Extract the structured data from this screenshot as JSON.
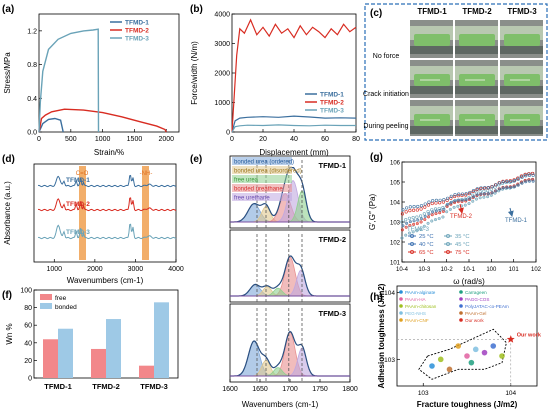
{
  "panel_labels": [
    "(a)",
    "(b)",
    "(c)",
    "(d)",
    "(e)",
    "(f)",
    "(g)",
    "(h)"
  ],
  "series_names": [
    "TFMD-1",
    "TFMD-2",
    "TFMD-3"
  ],
  "colors": {
    "tfmd1": "#3b6f9e",
    "tfmd2": "#d82c22",
    "tfmd3": "#6aa3b8",
    "free": "#f2878a",
    "bonded": "#9ec9e6",
    "orange": "#f0a050"
  },
  "chart_data": [
    {
      "panel": "(a)",
      "type": "line",
      "xlabel": "Strain/%",
      "ylabel": "Stress/MPa",
      "xlim": [
        0,
        2200
      ],
      "ylim": [
        0,
        1.4
      ],
      "xticks": [
        0,
        500,
        1000,
        1500,
        2000
      ],
      "yticks": [
        0.0,
        0.4,
        0.8,
        1.2
      ],
      "legend": [
        "TFMD-1",
        "TFMD-2",
        "TFMD-3"
      ],
      "legend_placement": "top-right",
      "series": [
        {
          "name": "TFMD-1",
          "x": [
            0,
            60,
            150,
            250,
            340,
            380
          ],
          "y": [
            0,
            0.1,
            0.15,
            0.16,
            0.14,
            0
          ]
        },
        {
          "name": "TFMD-2",
          "x": [
            0,
            40,
            100,
            200,
            400,
            700,
            1000,
            1300,
            1600,
            1850,
            1980,
            2000
          ],
          "y": [
            0,
            0.16,
            0.2,
            0.24,
            0.27,
            0.26,
            0.23,
            0.18,
            0.12,
            0.07,
            0.03,
            0
          ]
        },
        {
          "name": "TFMD-3",
          "x": [
            0,
            20,
            60,
            150,
            300,
            500,
            700,
            850,
            930,
            935
          ],
          "y": [
            0,
            0.35,
            0.72,
            0.98,
            1.1,
            1.17,
            1.2,
            1.21,
            1.22,
            0
          ]
        }
      ]
    },
    {
      "panel": "(b)",
      "type": "line",
      "xlabel": "Displacement (mm)",
      "ylabel": "Force/width (N/m)",
      "xlim": [
        0,
        80
      ],
      "ylim": [
        0,
        4000
      ],
      "xticks": [
        0,
        20,
        40,
        60,
        80
      ],
      "yticks": [
        0,
        1000,
        2000,
        3000,
        4000
      ],
      "legend": [
        "TFMD-1",
        "TFMD-2",
        "TFMD-3"
      ],
      "legend_placement": "right",
      "series": [
        {
          "name": "TFMD-1",
          "x": [
            0,
            2,
            5,
            10,
            20,
            30,
            40,
            50,
            60,
            70,
            80
          ],
          "y": [
            0,
            380,
            470,
            500,
            520,
            500,
            540,
            510,
            470,
            480,
            470
          ]
        },
        {
          "name": "TFMD-2",
          "x": [
            0,
            3,
            5,
            8,
            12,
            16,
            20,
            24,
            28,
            32,
            36,
            40,
            44,
            48,
            52,
            56,
            60,
            64,
            68,
            72,
            76,
            80
          ],
          "y": [
            0,
            2600,
            3500,
            3350,
            3800,
            3300,
            3550,
            3250,
            3650,
            3350,
            3500,
            3200,
            3600,
            3300,
            3550,
            3400,
            3200,
            3500,
            3300,
            3650,
            3400,
            3550
          ]
        },
        {
          "name": "TFMD-3",
          "x": [
            0,
            2,
            5,
            10,
            20,
            30,
            40,
            50,
            60,
            70,
            80
          ],
          "y": [
            0,
            180,
            210,
            230,
            220,
            240,
            220,
            210,
            230,
            220,
            220
          ]
        }
      ]
    },
    {
      "panel": "(d)",
      "type": "line",
      "xlabel": "Wavenumbers (cm-1)",
      "ylabel": "Absorbance (a.u.)",
      "xlim": [
        500,
        4000
      ],
      "xticks": [
        1000,
        2000,
        3000,
        4000
      ],
      "annotations": [
        "C=O",
        "-NH-"
      ],
      "series": [
        {
          "name": "TFMD-1"
        },
        {
          "name": "TFMD-2"
        },
        {
          "name": "TFMD-3"
        }
      ]
    },
    {
      "panel": "(e)",
      "type": "area",
      "xlabel": "Wavenumbers (cm-1)",
      "xlim": [
        1600,
        1800
      ],
      "xticks": [
        1600,
        1650,
        1700,
        1750,
        1800
      ],
      "legend": [
        "bonded urea (ordered)",
        "bonded urea (disordered)",
        "free urea",
        "bonded ureathane",
        "free urethane"
      ],
      "legend_colors": [
        "#7fa8d8",
        "#e0c890",
        "#90d090",
        "#e89090",
        "#c0a8e0"
      ],
      "dashed_lines": [
        1645,
        1660,
        1698,
        1720
      ],
      "subplots": [
        {
          "name": "TFMD-1",
          "peaks": [
            {
              "c": 1640,
              "h": 0.35,
              "w": 14,
              "color": "#7fa8d8"
            },
            {
              "c": 1660,
              "h": 0.3,
              "w": 10,
              "color": "#e0c890"
            },
            {
              "c": 1692,
              "h": 0.55,
              "w": 13,
              "color": "#e89090"
            },
            {
              "c": 1705,
              "h": 0.8,
              "w": 12,
              "color": "#c0a8e0"
            },
            {
              "c": 1720,
              "h": 0.6,
              "w": 10,
              "color": "#90d090"
            }
          ]
        },
        {
          "name": "TFMD-2",
          "peaks": [
            {
              "c": 1642,
              "h": 0.22,
              "w": 12,
              "color": "#7fa8d8"
            },
            {
              "c": 1662,
              "h": 0.18,
              "w": 10,
              "color": "#e0c890"
            },
            {
              "c": 1700,
              "h": 0.75,
              "w": 12,
              "color": "#e89090"
            },
            {
              "c": 1718,
              "h": 0.5,
              "w": 10,
              "color": "#c0a8e0"
            },
            {
              "c": 1680,
              "h": 0.15,
              "w": 10,
              "color": "#90d090"
            }
          ]
        },
        {
          "name": "TFMD-3",
          "peaks": [
            {
              "c": 1640,
              "h": 0.62,
              "w": 13,
              "color": "#7fa8d8"
            },
            {
              "c": 1660,
              "h": 0.28,
              "w": 10,
              "color": "#e0c890"
            },
            {
              "c": 1700,
              "h": 0.78,
              "w": 12,
              "color": "#e89090"
            },
            {
              "c": 1720,
              "h": 0.5,
              "w": 10,
              "color": "#c0a8e0"
            },
            {
              "c": 1680,
              "h": 0.15,
              "w": 10,
              "color": "#90d090"
            }
          ]
        }
      ]
    },
    {
      "panel": "(f)",
      "type": "bar",
      "ylabel": "Wn %",
      "categories": [
        "TFMD-1",
        "TFMD-2",
        "TFMD-3"
      ],
      "ylim": [
        0,
        100
      ],
      "yticks": [
        0,
        20,
        40,
        60,
        80,
        100
      ],
      "legend": [
        "free",
        "bonded"
      ],
      "legend_placement": "top-left",
      "series": [
        {
          "name": "free",
          "values": [
            44,
            33,
            14
          ]
        },
        {
          "name": "bonded",
          "values": [
            56,
            67,
            86
          ]
        }
      ]
    },
    {
      "panel": "(g)",
      "type": "scatter",
      "xlabel": "ω (rad/s)",
      "ylabel": "G′,G″ (Pa)",
      "xscale": "log",
      "yscale": "log",
      "xlim": [
        0.0001,
        100
      ],
      "ylim": [
        10,
        1000000
      ],
      "xticks": [
        "10-4",
        "10-3",
        "10-2",
        "10-1",
        "100",
        "101",
        "102"
      ],
      "yticks": [
        "101",
        "102",
        "103",
        "104",
        "105",
        "106"
      ],
      "annotations": [
        "TFMD-3",
        "TFMD-2",
        "TFMD-1"
      ],
      "legend": [
        "25 °C",
        "40 °C",
        "65 °C",
        "35 °C",
        "45 °C",
        "75 °C"
      ]
    },
    {
      "panel": "(h)",
      "type": "scatter",
      "xlabel": "Fracture toughness (J/m2)",
      "ylabel": "Adhesion toughness (J/m2)",
      "xscale": "log",
      "yscale": "log",
      "xticks": [
        "103",
        "104"
      ],
      "yticks": [
        "103",
        "104"
      ],
      "legend": [
        "PAAm-alginate",
        "PAAm-HA",
        "PAAm-chitosan",
        "PEG-NHS",
        "PAAm-CNF",
        "Carrageen",
        "PAGG-COS",
        "PolyJATAC-co-PEAm",
        "PAAm-Gel",
        "Our work"
      ],
      "annotations": [
        "Our work"
      ]
    }
  ],
  "photo_c": {
    "columns": [
      "TFMD-1",
      "TFMD-2",
      "TFMD-3"
    ],
    "rows": [
      "No force",
      "Crack initiation",
      "During peeling"
    ]
  }
}
